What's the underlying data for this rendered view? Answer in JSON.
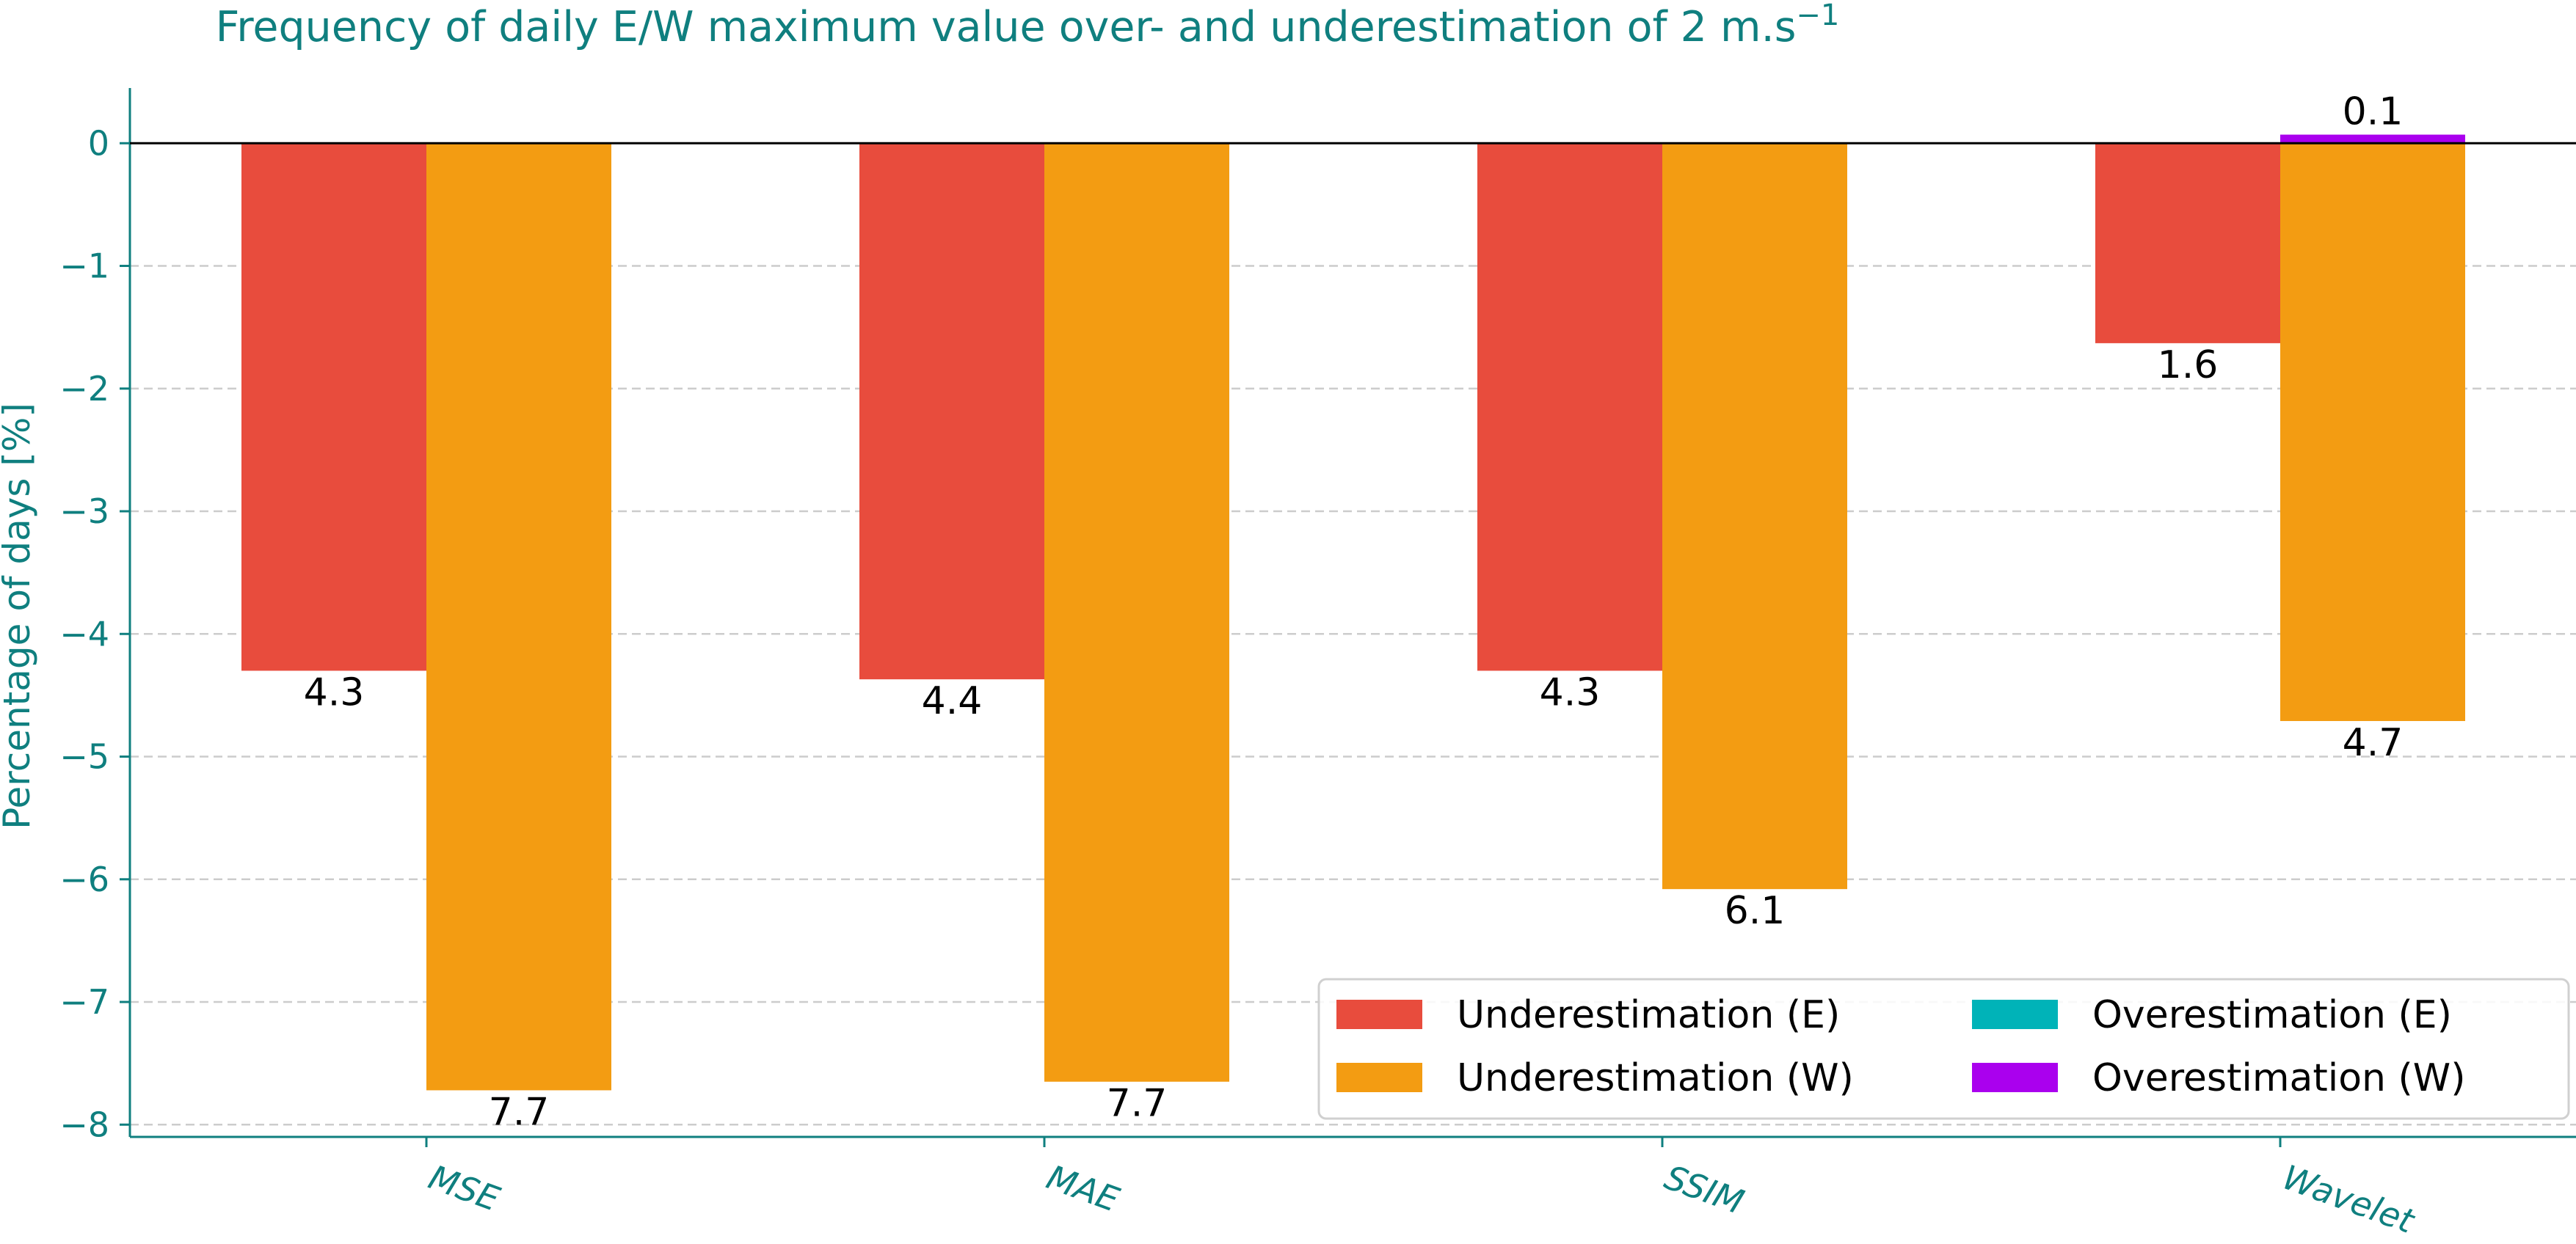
{
  "chart_data": {
    "type": "bar",
    "title": "Frequency of daily E/W maximum value over- and underestimation of 2 m.s",
    "title_superscript": "−1",
    "xlabel": "",
    "ylabel": "Percentage of days [%]",
    "ylim": [
      -8.1,
      0.45
    ],
    "yticks": [
      0,
      -1,
      -2,
      -3,
      -4,
      -5,
      -6,
      -7,
      -8
    ],
    "ytick_labels": [
      "0",
      "−1",
      "−2",
      "−3",
      "−4",
      "−5",
      "−6",
      "−7",
      "−8"
    ],
    "categories": [
      "MSE",
      "MAE",
      "SSIM",
      "Wavelet"
    ],
    "grid": "horizontal dashed",
    "legend_position": "bottom-right",
    "series": [
      {
        "name": "Underestimation (E)",
        "color": "#e84c3d",
        "values": [
          -4.3,
          -4.37,
          -4.3,
          -1.63
        ],
        "labels": [
          "4.3",
          "4.4",
          "4.3",
          "1.6"
        ]
      },
      {
        "name": "Overestimation (E)",
        "color": "#00b3b8",
        "values": [
          0,
          0,
          0,
          0
        ],
        "labels": [
          "",
          "",
          "",
          ""
        ]
      },
      {
        "name": "Underestimation (W)",
        "color": "#f39c12",
        "values": [
          -7.72,
          -7.65,
          -6.08,
          -4.71
        ],
        "labels": [
          "7.7",
          "7.7",
          "6.1",
          "4.7"
        ]
      },
      {
        "name": "Overestimation (W)",
        "color": "#aa00ee",
        "values": [
          0,
          0,
          0,
          0.07
        ],
        "labels": [
          "",
          "",
          "",
          "0.1"
        ]
      }
    ],
    "legend_order": [
      0,
      2,
      1,
      3
    ]
  }
}
